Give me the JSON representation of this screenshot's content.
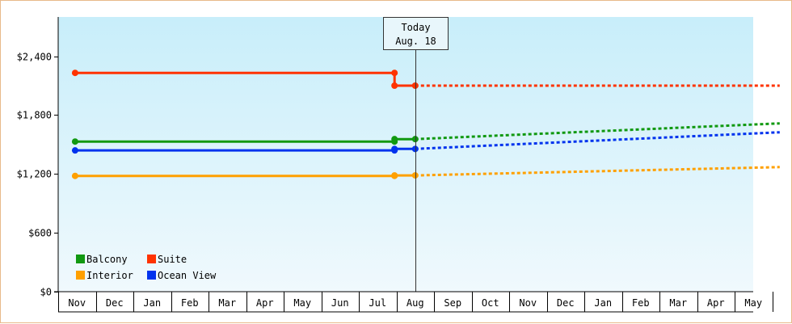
{
  "chart_data": {
    "type": "line",
    "x_categories": [
      "Nov",
      "Dec",
      "Jan",
      "Feb",
      "Mar",
      "Apr",
      "May",
      "Jun",
      "Jul",
      "Aug",
      "Sep",
      "Oct",
      "Nov",
      "Dec",
      "Jan",
      "Feb",
      "Mar",
      "Apr",
      "May"
    ],
    "y_ticks": [
      {
        "value": 0,
        "label": "$0"
      },
      {
        "value": 600,
        "label": "$600"
      },
      {
        "value": 1200,
        "label": "$1,200"
      },
      {
        "value": 1800,
        "label": "$1,800"
      },
      {
        "value": 2400,
        "label": "$2,400"
      }
    ],
    "ylim": [
      0,
      2800
    ],
    "today": {
      "x": 9.0,
      "line1": "Today",
      "line2": "Aug. 18"
    },
    "series": [
      {
        "name": "Suite",
        "color": "#ff3300",
        "history": [
          [
            -0.05,
            2230
          ],
          [
            8.45,
            2230
          ],
          [
            8.45,
            2100
          ],
          [
            9.0,
            2100
          ]
        ],
        "history_markers": [
          [
            -0.05,
            2230
          ],
          [
            8.45,
            2230
          ],
          [
            8.45,
            2100
          ],
          [
            9.0,
            2100
          ]
        ],
        "forecast": [
          [
            9.0,
            2100
          ],
          [
            18.7,
            2100
          ]
        ]
      },
      {
        "name": "Balcony",
        "color": "#119911",
        "history": [
          [
            -0.05,
            1530
          ],
          [
            8.45,
            1530
          ],
          [
            8.45,
            1555
          ],
          [
            9.0,
            1555
          ]
        ],
        "history_markers": [
          [
            -0.05,
            1530
          ],
          [
            8.45,
            1530
          ],
          [
            8.45,
            1555
          ],
          [
            9.0,
            1555
          ]
        ],
        "forecast": [
          [
            9.0,
            1555
          ],
          [
            18.7,
            1715
          ]
        ]
      },
      {
        "name": "Ocean View",
        "color": "#0033ee",
        "history": [
          [
            -0.05,
            1440
          ],
          [
            8.45,
            1440
          ],
          [
            8.45,
            1455
          ],
          [
            9.0,
            1455
          ]
        ],
        "history_markers": [
          [
            -0.05,
            1440
          ],
          [
            8.45,
            1440
          ],
          [
            8.45,
            1455
          ],
          [
            9.0,
            1455
          ]
        ],
        "forecast": [
          [
            9.0,
            1455
          ],
          [
            18.7,
            1625
          ]
        ]
      },
      {
        "name": "Interior",
        "color": "#ffa000",
        "history": [
          [
            -0.05,
            1180
          ],
          [
            8.45,
            1180
          ],
          [
            8.45,
            1185
          ],
          [
            9.0,
            1185
          ]
        ],
        "history_markers": [
          [
            -0.05,
            1180
          ],
          [
            8.45,
            1180
          ],
          [
            8.45,
            1185
          ],
          [
            9.0,
            1185
          ]
        ],
        "forecast": [
          [
            9.0,
            1185
          ],
          [
            18.7,
            1270
          ]
        ]
      }
    ],
    "legend": {
      "placement": "bottom-left",
      "order": [
        "Balcony",
        "Suite",
        "Interior",
        "Ocean View"
      ]
    },
    "colors": {
      "background_top": "#c8eefa",
      "background_bottom": "#f0f9fd",
      "axis": "#000000",
      "today_line": "#333333"
    }
  }
}
